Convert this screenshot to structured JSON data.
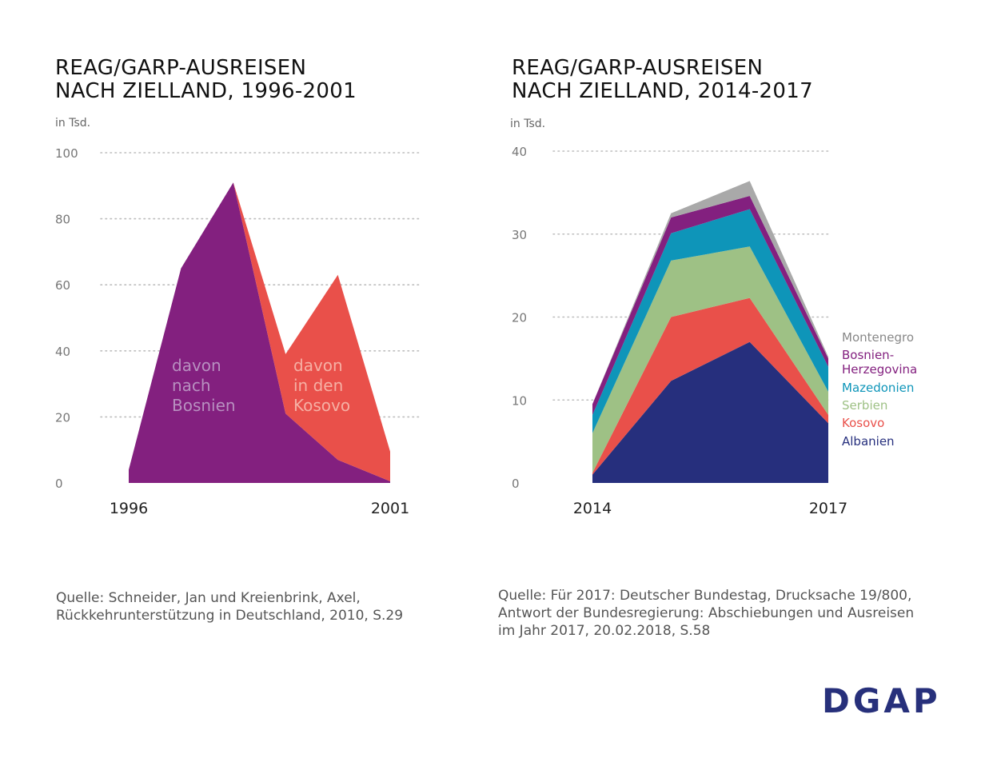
{
  "left": {
    "title_line1": "REAG/GARP-AUSREISEN",
    "title_line2": "NACH ZIELLAND, 1996-2001",
    "unit": "in Tsd.",
    "source_line1": "Quelle: Schneider, Jan und Kreienbrink, Axel,",
    "source_line2": "Rückkehrunterstützung in Deutschland, 2010, S.29"
  },
  "right": {
    "title_line1": "REAG/GARP-AUSREISEN",
    "title_line2": "NACH ZIELLAND, 2014-2017",
    "unit": "in Tsd.",
    "source_line1": "Quelle: Für 2017: Deutscher Bundestag, Drucksache 19/800,",
    "source_line2": "Antwort der Bundesregierung: Abschiebungen und Ausreisen",
    "source_line3": "im Jahr 2017, 20.02.2018, S.58"
  },
  "logo": "DGAP",
  "chart_data": [
    {
      "type": "area",
      "title": "REAG/GARP-AUSREISEN NACH ZIELLAND, 1996-2001",
      "ylabel": "in Tsd.",
      "ylim": [
        0,
        100
      ],
      "yticks": [
        0,
        20,
        40,
        60,
        80,
        100
      ],
      "x": [
        1996,
        1997,
        1998,
        1999,
        2000,
        2001
      ],
      "x_tick_labels": [
        "1996",
        "2001"
      ],
      "stacked": true,
      "series": [
        {
          "name": "davon nach Bosnien",
          "label_lines": [
            "davon",
            "nach",
            "Bosnien"
          ],
          "color": "#83207f",
          "values": [
            4,
            65,
            91,
            21,
            7,
            0.5
          ]
        },
        {
          "name": "davon in den Kosovo",
          "label_lines": [
            "davon",
            "in den",
            "Kosovo"
          ],
          "color": "#e9504a",
          "values": [
            0,
            0,
            0,
            18,
            56,
            9
          ]
        }
      ]
    },
    {
      "type": "area",
      "title": "REAG/GARP-AUSREISEN NACH ZIELLAND, 2014-2017",
      "ylabel": "in Tsd.",
      "ylim": [
        0,
        40
      ],
      "yticks": [
        0,
        10,
        20,
        30,
        40
      ],
      "x": [
        2014,
        2015,
        2016,
        2017
      ],
      "x_tick_labels": [
        "2014",
        "2017"
      ],
      "stacked": true,
      "series": [
        {
          "name": "Albanien",
          "color": "#262f7d",
          "values": [
            1,
            12.3,
            17,
            7.2
          ]
        },
        {
          "name": "Kosovo",
          "color": "#e9504a",
          "values": [
            0.2,
            7.7,
            5.3,
            1
          ]
        },
        {
          "name": "Serbien",
          "color": "#9ec185",
          "values": [
            4.8,
            6.8,
            6.2,
            2.8
          ]
        },
        {
          "name": "Mazedonien",
          "color": "#0e95b9",
          "values": [
            2.2,
            3.3,
            4.5,
            3
          ]
        },
        {
          "name": "Bosnien-Herzegovina",
          "label_lines": [
            "Bosnien-",
            "Herzegovina"
          ],
          "color": "#83207f",
          "values": [
            1.3,
            1.9,
            1.6,
            1
          ]
        },
        {
          "name": "Montenegro",
          "color": "#a9a9a9",
          "values": [
            0,
            0.5,
            1.8,
            0.2
          ]
        }
      ]
    }
  ]
}
